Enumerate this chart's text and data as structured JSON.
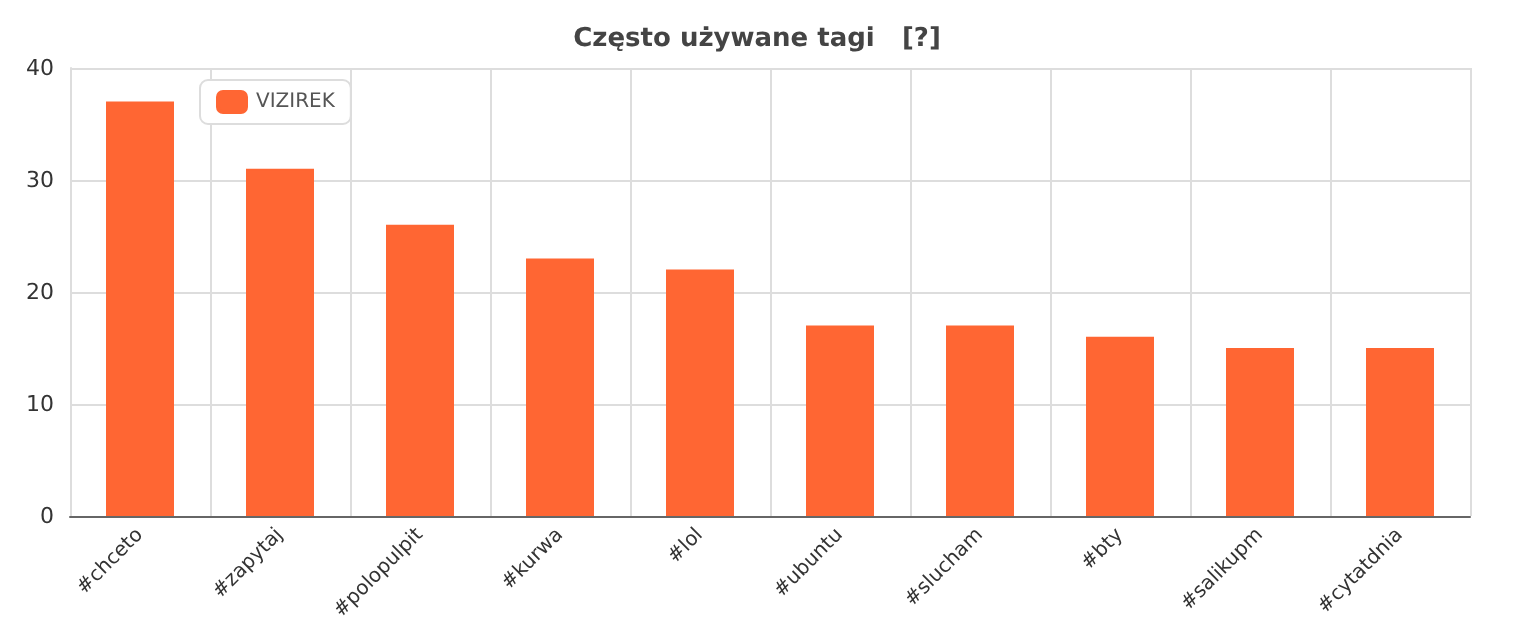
{
  "chart_data": {
    "type": "bar",
    "title": "Często używane tagi   [?]",
    "categories": [
      "#chceto",
      "#zapytaj",
      "#polopulpit",
      "#kurwa",
      "#lol",
      "#ubuntu",
      "#slucham",
      "#bty",
      "#salikupm",
      "#cytatdnia"
    ],
    "series": [
      {
        "name": "VIZIREK",
        "color": "#ff6633",
        "values": [
          37,
          31,
          26,
          23,
          22,
          17,
          17,
          16,
          15,
          15
        ]
      }
    ],
    "ylim": [
      0,
      40
    ],
    "yticks": [
      0,
      10,
      20,
      30,
      40
    ],
    "grid": true,
    "legend": "top left"
  }
}
